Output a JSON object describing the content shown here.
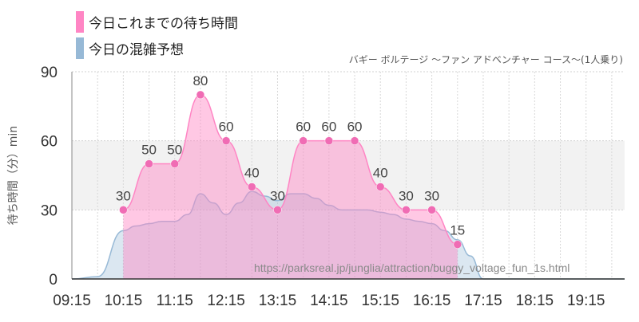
{
  "legend": [
    {
      "label": "今日これまでの待ち時間",
      "color": "#ff85c4"
    },
    {
      "label": "今日の混雑予想",
      "color": "#97b9d6"
    }
  ],
  "subtitle": "バギー ボルテージ ～ファン アドベンチャー コース～(1人乗り)",
  "watermark": "https://parksreal.jp/junglia/attraction/buggy_voltage_fun_1s.html",
  "chart_data": {
    "type": "area",
    "title": "",
    "subtitle": "バギー ボルテージ ～ファン アドベンチャー コース～(1人乗り)",
    "xlabel": "",
    "ylabel": "待ち時間（分）min",
    "ylim": [
      0,
      90
    ],
    "yticks": [
      0,
      30,
      60,
      90
    ],
    "xlim": [
      "09:15",
      "20:00"
    ],
    "xticks": [
      "09:15",
      "10:15",
      "11:15",
      "12:15",
      "13:15",
      "14:15",
      "15:15",
      "16:15",
      "17:15",
      "18:15",
      "19:15"
    ],
    "grid": true,
    "shaded_band": [
      30,
      60
    ],
    "legend_position": "top-left",
    "series": [
      {
        "name": "今日これまでの待ち時間",
        "color": "#ff85c4",
        "x": [
          "10:15",
          "10:45",
          "11:15",
          "11:45",
          "12:15",
          "12:45",
          "13:15",
          "13:45",
          "14:15",
          "14:45",
          "15:15",
          "15:45",
          "16:15",
          "16:45"
        ],
        "values": [
          30,
          50,
          50,
          80,
          60,
          40,
          30,
          60,
          60,
          60,
          40,
          30,
          30,
          15
        ],
        "labels": [
          "30",
          "50",
          "50",
          "80",
          "60",
          "40",
          "30",
          "60",
          "60",
          "60",
          "40",
          "30",
          "30",
          "15"
        ]
      },
      {
        "name": "今日の混雑予想",
        "color": "#97b9d6",
        "x": [
          "09:15",
          "09:45",
          "10:15",
          "10:30",
          "10:45",
          "11:00",
          "11:15",
          "11:30",
          "11:45",
          "12:00",
          "12:15",
          "12:30",
          "12:45",
          "13:00",
          "13:15",
          "13:30",
          "13:45",
          "14:00",
          "14:15",
          "14:30",
          "14:45",
          "15:00",
          "15:15",
          "15:30",
          "15:45",
          "16:00",
          "16:15",
          "16:30",
          "16:45",
          "17:00",
          "17:15",
          "20:00"
        ],
        "values": [
          0,
          1,
          21,
          23,
          24,
          25,
          25,
          28,
          37,
          33,
          28,
          33,
          38,
          36,
          34,
          37,
          37,
          35,
          32,
          30,
          30,
          30,
          29,
          28,
          26,
          25,
          24,
          21,
          17,
          10,
          0,
          0
        ]
      }
    ]
  }
}
